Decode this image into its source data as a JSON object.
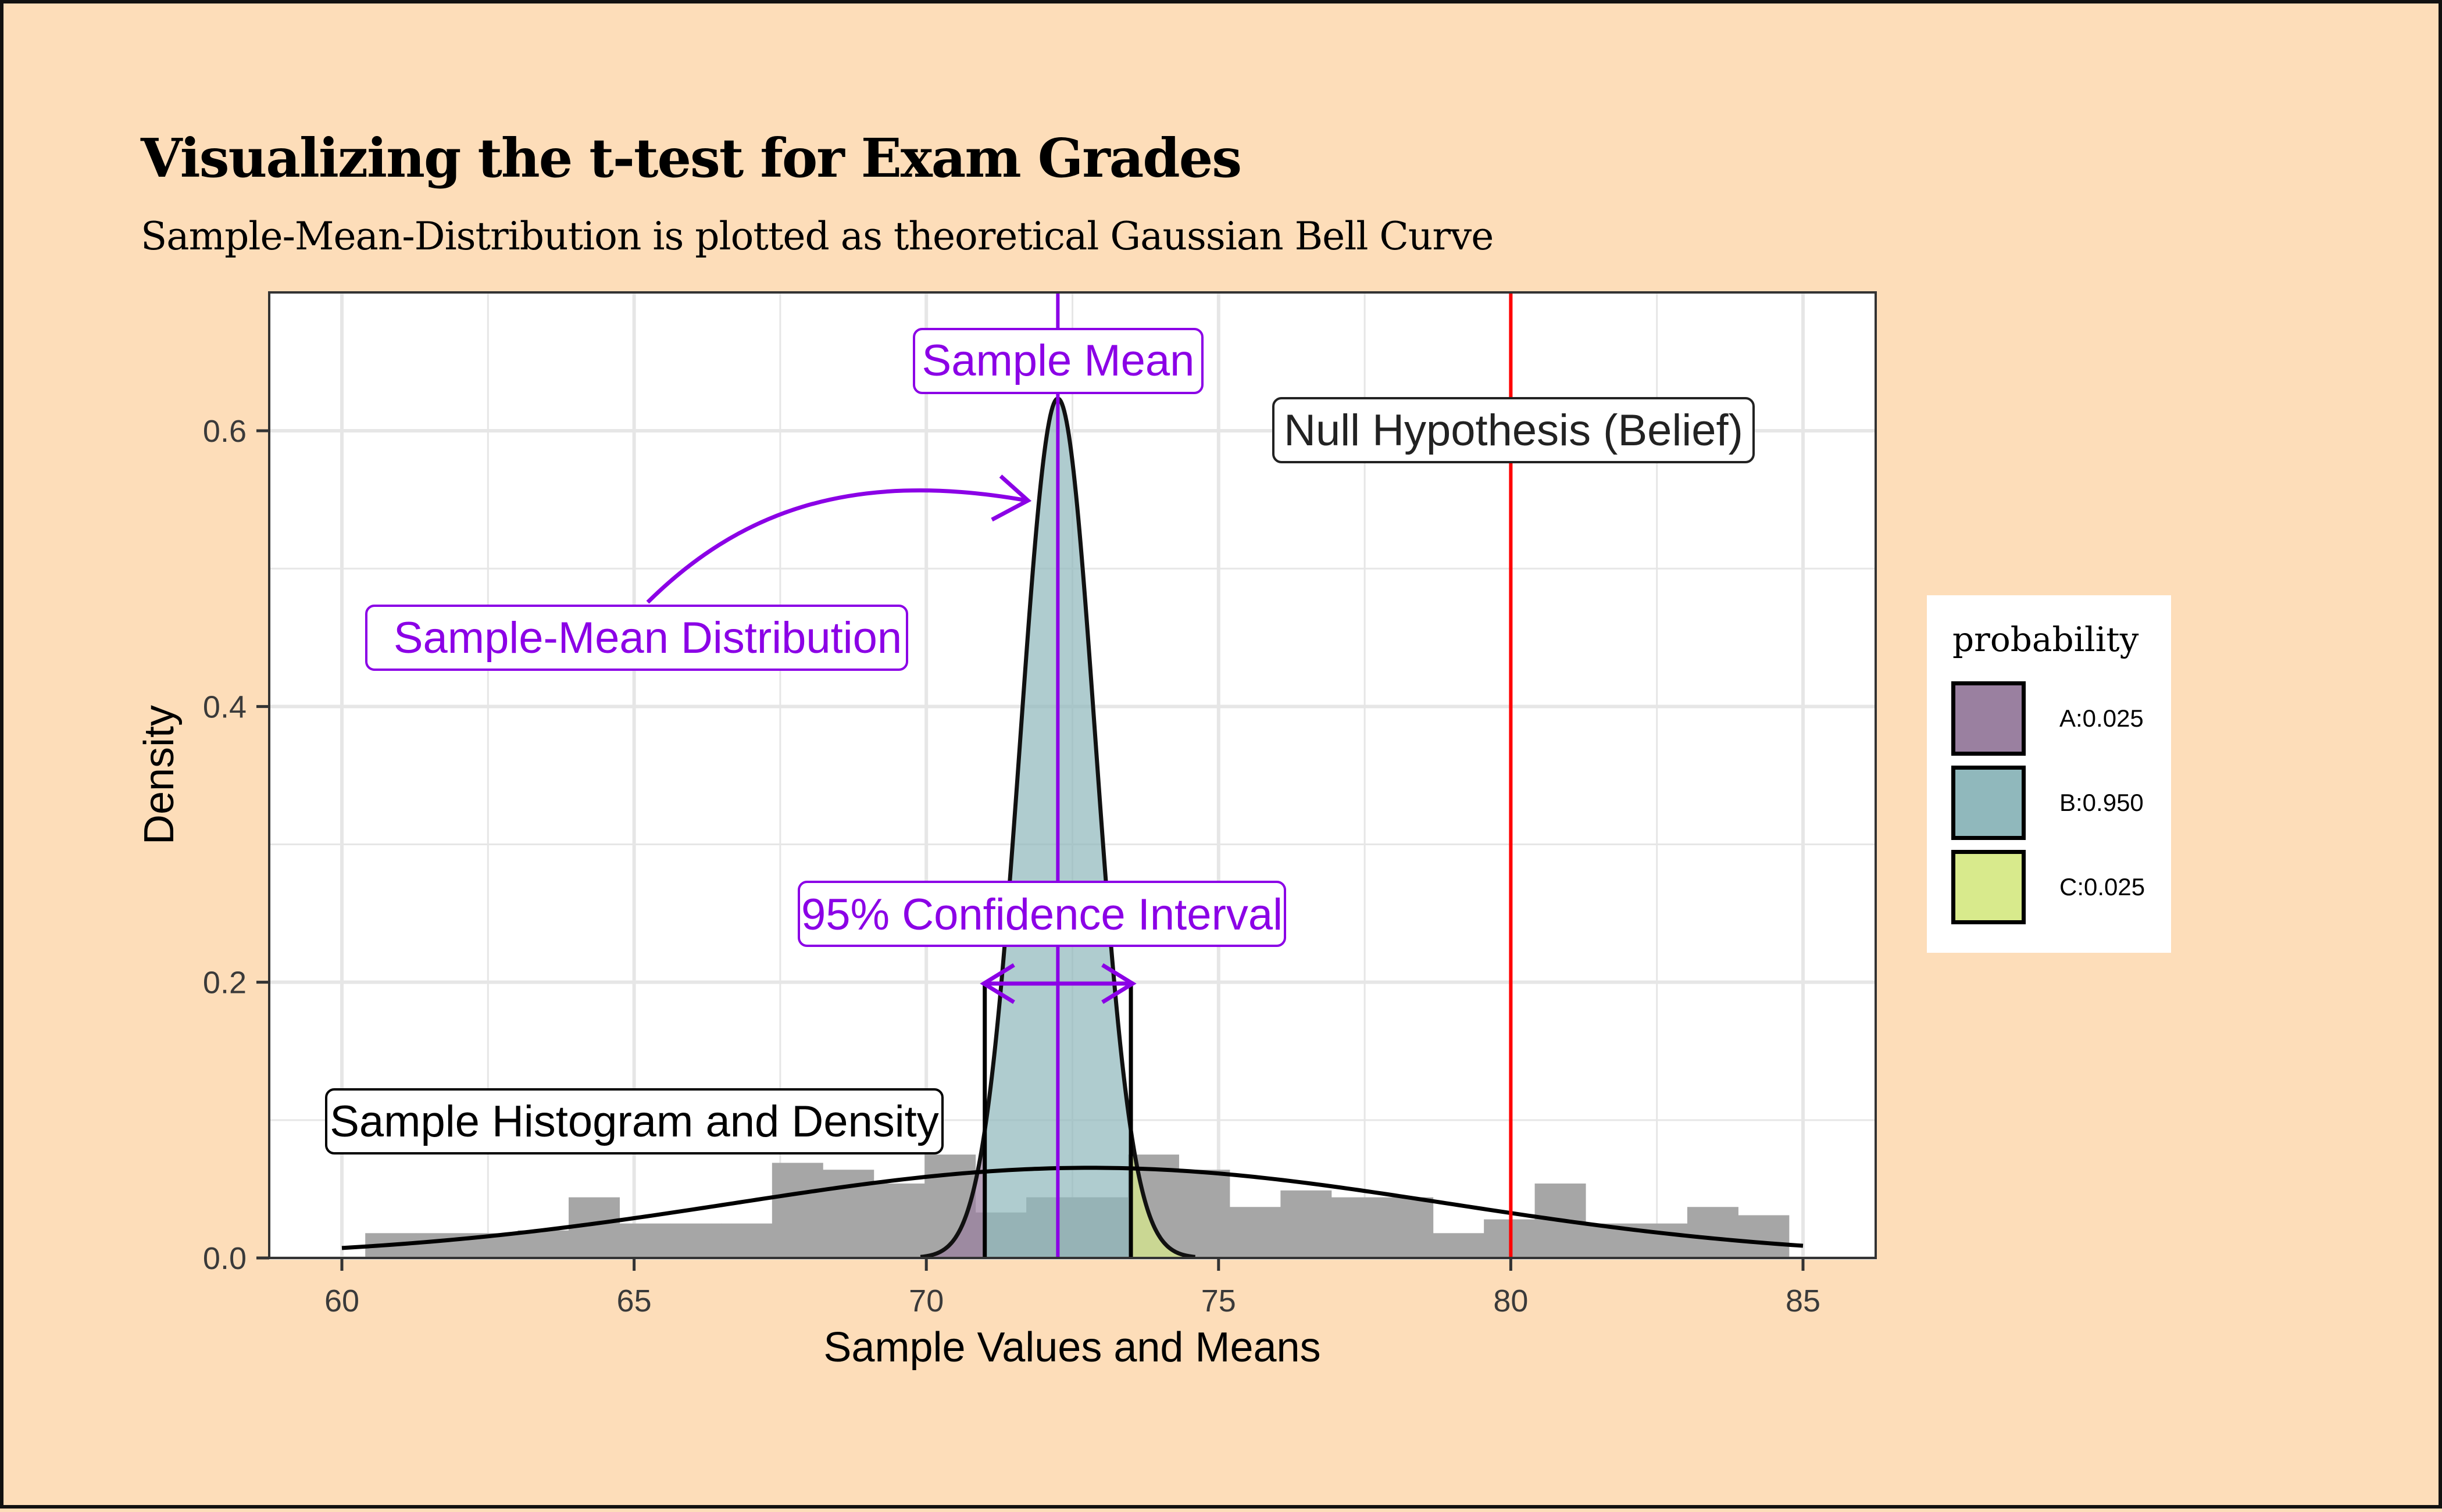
{
  "title": "Visualizing the t-test for Exam Grades",
  "subtitle": "Sample-Mean-Distribution is plotted as theoretical Gaussian Bell Curve",
  "axes": {
    "xlabel": "Sample Values and Means",
    "ylabel": "Density",
    "x_ticks": [
      "60",
      "65",
      "70",
      "75",
      "80",
      "85"
    ],
    "y_ticks": [
      "0.0",
      "0.2",
      "0.4",
      "0.6"
    ]
  },
  "annotations": {
    "sample_mean": "Sample Mean",
    "null_hypothesis": "Null Hypothesis (Belief)",
    "sample_mean_distribution": "Sample-Mean Distribution",
    "confidence_interval": "95% Confidence Interval",
    "histogram": "Sample Histogram and Density"
  },
  "legend": {
    "title": "probability",
    "items": [
      {
        "label": "A:0.025",
        "color": "#9A80A0"
      },
      {
        "label": "B:0.950",
        "color": "#90B8BC"
      },
      {
        "label": "C:0.025",
        "color": "#D8EA8C"
      }
    ]
  },
  "colors": {
    "background": "#FDDDB9",
    "accent_purple": "#8B00E6",
    "null_red": "#FF0000",
    "histogram_gray": "#A6A6A6"
  },
  "chart_data": {
    "type": "histogram+density",
    "title": "Visualizing the t-test for Exam Grades",
    "subtitle": "Sample-Mean-Distribution is plotted as theoretical Gaussian Bell Curve",
    "xlabel": "Sample Values and Means",
    "ylabel": "Density",
    "xlim": [
      58.8,
      86.3
    ],
    "ylim": [
      0,
      0.7
    ],
    "x_ticks": [
      60,
      65,
      70,
      75,
      80,
      85
    ],
    "y_ticks": [
      0.0,
      0.2,
      0.4,
      0.6
    ],
    "grid": true,
    "legend_position": "right",
    "histogram": {
      "bin_left_edges": [
        60.4,
        61.27,
        62.14,
        63.01,
        63.88,
        64.75,
        65.62,
        66.49,
        67.36,
        68.23,
        69.1,
        69.97,
        70.84,
        71.71,
        72.58,
        73.45,
        74.32,
        75.19,
        76.06,
        76.93,
        77.8,
        78.67,
        79.54,
        80.41,
        81.28,
        82.15,
        83.02,
        83.89
      ],
      "bin_width": 0.87,
      "density": [
        0.018,
        0.018,
        0.018,
        0.02,
        0.044,
        0.025,
        0.025,
        0.025,
        0.069,
        0.064,
        0.054,
        0.075,
        0.033,
        0.044,
        0.044,
        0.075,
        0.064,
        0.037,
        0.049,
        0.044,
        0.044,
        0.018,
        0.028,
        0.054,
        0.025,
        0.025,
        0.037,
        0.031
      ]
    },
    "series": [
      {
        "name": "Sample density (normal fit)",
        "mean": 72.8,
        "sd": 6.1,
        "peak": 0.065,
        "x_range": [
          60,
          85
        ]
      },
      {
        "name": "Sample-Mean Distribution",
        "mean": 72.25,
        "sd": 0.64,
        "peak": 0.625
      }
    ],
    "regions": [
      {
        "name": "A:0.025",
        "range": [
          70.0,
          71.0
        ],
        "fill": "#9A80A0"
      },
      {
        "name": "B:0.950",
        "range": [
          71.0,
          73.5
        ],
        "fill": "#90B8BC"
      },
      {
        "name": "C:0.025",
        "range": [
          73.5,
          74.5
        ],
        "fill": "#D8EA8C"
      }
    ],
    "vlines": [
      {
        "name": "Sample Mean",
        "x": 72.25,
        "color": "#8B00E6"
      },
      {
        "name": "Null Hypothesis (Belief)",
        "x": 80,
        "color": "#FF0000"
      },
      {
        "name": "CI lower",
        "x": 71.0,
        "color": "#000000",
        "ymax": 0.2
      },
      {
        "name": "CI upper",
        "x": 73.5,
        "color": "#000000",
        "ymax": 0.2
      }
    ],
    "annotations": [
      {
        "text": "Sample Mean",
        "x": 72.25,
        "y": 0.65
      },
      {
        "text": "Null Hypothesis (Belief)",
        "x": 80,
        "y": 0.6
      },
      {
        "text": "Sample-Mean Distribution",
        "x": 65.3,
        "y": 0.45
      },
      {
        "text": "95% Confidence Interval",
        "x": 72.0,
        "y": 0.25
      },
      {
        "text": "Sample Histogram and Density",
        "x": 64.9,
        "y": 0.1
      }
    ]
  }
}
